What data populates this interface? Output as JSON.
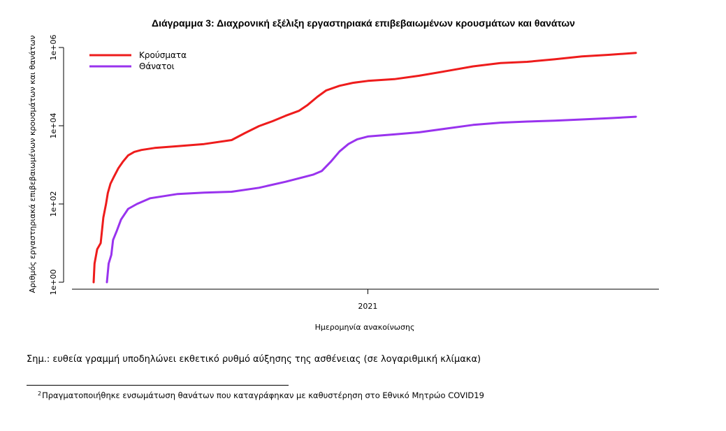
{
  "chart_data": {
    "type": "line",
    "title": "Διάγραμμα 3: Διαχρονική εξέλιξη εργαστηριακά επιβεβαιωμένων κρουσμάτων και θανάτων",
    "xlabel": "Ημερομηνία ανακοίνωσης",
    "ylabel": "Αριθμός εργαστηριακά επιβεβαιωμένων κρουσμάτων και θανάτων",
    "y_scale": "log10",
    "ylim": [
      1,
      1000000
    ],
    "y_ticks": [
      {
        "value": 1,
        "label": "1e+00"
      },
      {
        "value": 100,
        "label": "1e+02"
      },
      {
        "value": 10000,
        "label": "1e+04"
      },
      {
        "value": 1000000,
        "label": "1e+06"
      }
    ],
    "x_ticks": [
      {
        "value": "2021-01-01",
        "label": "2021"
      }
    ],
    "xlim": [
      "2020-02-26",
      "2021-10-31"
    ],
    "legend_position": "top-left",
    "grid": false,
    "series": [
      {
        "name": "Κρούσματα",
        "color": "#ee1c1c",
        "points": [
          [
            "2020-02-26",
            1
          ],
          [
            "2020-02-27",
            3
          ],
          [
            "2020-03-01",
            7
          ],
          [
            "2020-03-05",
            10
          ],
          [
            "2020-03-08",
            45
          ],
          [
            "2020-03-11",
            99
          ],
          [
            "2020-03-13",
            190
          ],
          [
            "2020-03-16",
            330
          ],
          [
            "2020-03-20",
            500
          ],
          [
            "2020-03-25",
            820
          ],
          [
            "2020-03-30",
            1200
          ],
          [
            "2020-04-05",
            1750
          ],
          [
            "2020-04-12",
            2150
          ],
          [
            "2020-04-20",
            2400
          ],
          [
            "2020-05-05",
            2700
          ],
          [
            "2020-05-31",
            3000
          ],
          [
            "2020-06-30",
            3400
          ],
          [
            "2020-07-31",
            4300
          ],
          [
            "2020-08-15",
            6500
          ],
          [
            "2020-08-31",
            9800
          ],
          [
            "2020-09-15",
            13000
          ],
          [
            "2020-09-30",
            18000
          ],
          [
            "2020-10-15",
            24000
          ],
          [
            "2020-10-25",
            34000
          ],
          [
            "2020-11-05",
            55000
          ],
          [
            "2020-11-15",
            80000
          ],
          [
            "2020-11-30",
            105000
          ],
          [
            "2020-12-15",
            125000
          ],
          [
            "2021-01-01",
            140000
          ],
          [
            "2021-01-31",
            155000
          ],
          [
            "2021-02-28",
            190000
          ],
          [
            "2021-03-31",
            250000
          ],
          [
            "2021-04-30",
            330000
          ],
          [
            "2021-05-31",
            400000
          ],
          [
            "2021-06-30",
            430000
          ],
          [
            "2021-07-31",
            500000
          ],
          [
            "2021-08-31",
            590000
          ],
          [
            "2021-09-30",
            650000
          ],
          [
            "2021-10-31",
            730000
          ]
        ]
      },
      {
        "name": "Θάνατοι",
        "color": "#9933ee",
        "points": [
          [
            "2020-03-12",
            1
          ],
          [
            "2020-03-14",
            3
          ],
          [
            "2020-03-17",
            5
          ],
          [
            "2020-03-19",
            12
          ],
          [
            "2020-03-23",
            20
          ],
          [
            "2020-03-28",
            40
          ],
          [
            "2020-04-05",
            75
          ],
          [
            "2020-04-15",
            100
          ],
          [
            "2020-04-30",
            140
          ],
          [
            "2020-05-31",
            180
          ],
          [
            "2020-06-30",
            195
          ],
          [
            "2020-07-31",
            205
          ],
          [
            "2020-08-31",
            260
          ],
          [
            "2020-09-30",
            370
          ],
          [
            "2020-10-31",
            560
          ],
          [
            "2020-11-10",
            700
          ],
          [
            "2020-11-20",
            1200
          ],
          [
            "2020-11-30",
            2200
          ],
          [
            "2020-12-10",
            3400
          ],
          [
            "2020-12-20",
            4500
          ],
          [
            "2021-01-01",
            5300
          ],
          [
            "2021-01-31",
            6000
          ],
          [
            "2021-02-28",
            6800
          ],
          [
            "2021-03-31",
            8500
          ],
          [
            "2021-04-30",
            10500
          ],
          [
            "2021-05-31",
            12000
          ],
          [
            "2021-06-30",
            12800
          ],
          [
            "2021-07-31",
            13500
          ],
          [
            "2021-08-31",
            14500
          ],
          [
            "2021-09-30",
            15500
          ],
          [
            "2021-10-31",
            17000
          ]
        ]
      }
    ]
  },
  "note": "Σημ.: ευθεία γραμμή υποδηλώνει εκθετικό ρυθμό αύξησης της ασθένειας (σε λογαριθμική κλίμακα)",
  "footnote": {
    "marker": "2",
    "text": "Πραγματοποιήθηκε ενσωμάτωση θανάτων που καταγράφηκαν με καθυστέρηση στο Εθνικό Μητρώο COVID19"
  }
}
